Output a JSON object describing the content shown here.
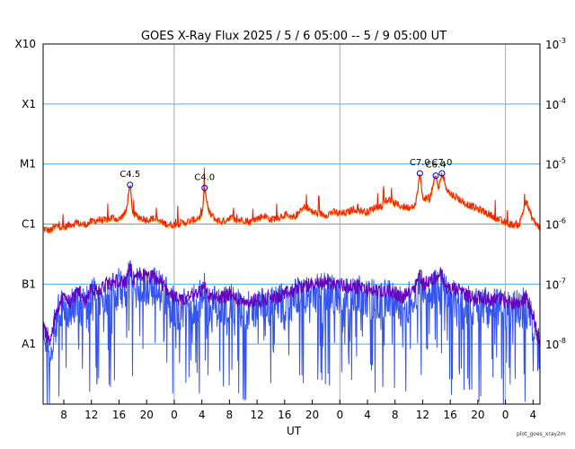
{
  "chart_data": {
    "type": "line",
    "title": "GOES X-Ray Flux   2025 /  5 /  6   05:00 --  5 /  9   05:00   UT",
    "xlabel": "UT",
    "footer": "plot_goes_xray2m",
    "x_range_hours": [
      0,
      72
    ],
    "x_ticks": [
      {
        "t": 3,
        "label": "8"
      },
      {
        "t": 7,
        "label": "12"
      },
      {
        "t": 11,
        "label": "16"
      },
      {
        "t": 15,
        "label": "20"
      },
      {
        "t": 19,
        "label": "0"
      },
      {
        "t": 23,
        "label": "4"
      },
      {
        "t": 27,
        "label": "8"
      },
      {
        "t": 31,
        "label": "12"
      },
      {
        "t": 35,
        "label": "16"
      },
      {
        "t": 39,
        "label": "20"
      },
      {
        "t": 43,
        "label": "0"
      },
      {
        "t": 47,
        "label": "4"
      },
      {
        "t": 51,
        "label": "8"
      },
      {
        "t": 55,
        "label": "12"
      },
      {
        "t": 59,
        "label": "16"
      },
      {
        "t": 63,
        "label": "20"
      },
      {
        "t": 67,
        "label": "0"
      },
      {
        "t": 71,
        "label": "4"
      }
    ],
    "day_boundaries_hours": [
      19,
      43,
      67
    ],
    "y_scale": "log",
    "ylim": [
      1e-09,
      0.001
    ],
    "y_left_labels": [
      {
        "v": 0.001,
        "label": "X10"
      },
      {
        "v": 0.0001,
        "label": "X1"
      },
      {
        "v": 1e-05,
        "label": "M1"
      },
      {
        "v": 1e-06,
        "label": "C1"
      },
      {
        "v": 1e-07,
        "label": "B1"
      },
      {
        "v": 1e-08,
        "label": "A1"
      }
    ],
    "y_right_labels": [
      {
        "v": 0.001,
        "mant": "10",
        "exp": "-3"
      },
      {
        "v": 0.0001,
        "mant": "10",
        "exp": "-4"
      },
      {
        "v": 1e-05,
        "mant": "10",
        "exp": "-5"
      },
      {
        "v": 1e-06,
        "mant": "10",
        "exp": "-6"
      },
      {
        "v": 1e-07,
        "mant": "10",
        "exp": "-7"
      },
      {
        "v": 1e-08,
        "mant": "10",
        "exp": "-8"
      }
    ],
    "class_gridlines": [
      0.0001,
      1e-05,
      1e-06,
      1e-07,
      1e-08
    ],
    "colors": {
      "long_channel": "#ee2200",
      "long_channel_2": "#ff8800",
      "short_channel": "#6600bb",
      "short_channel_2": "#3355ee",
      "grid": "#55aadd",
      "day_line": "#aaaaaa",
      "flare_marker": "#0000cc"
    },
    "flares": [
      {
        "t": 12.6,
        "flux": 4.5e-06,
        "label": "C4.5"
      },
      {
        "t": 23.4,
        "flux": 4e-06,
        "label": "C4.0"
      },
      {
        "t": 54.6,
        "flux": 7e-06,
        "label": "C7.0"
      },
      {
        "t": 56.9,
        "flux": 6.4e-06,
        "label": "C6.4"
      },
      {
        "t": 57.8,
        "flux": 7e-06,
        "label": "C7.0"
      }
    ],
    "series": [
      {
        "channel": "long",
        "points": [
          [
            0,
            8.5e-07
          ],
          [
            1,
            7.8e-07
          ],
          [
            2,
            9.5e-07
          ],
          [
            3,
            8.8e-07
          ],
          [
            4,
            1e-06
          ],
          [
            5,
            1.05e-06
          ],
          [
            6,
            9.8e-07
          ],
          [
            7,
            1.1e-06
          ],
          [
            8,
            1.2e-06
          ],
          [
            9,
            1.15e-06
          ],
          [
            10,
            1.3e-06
          ],
          [
            11,
            1.2e-06
          ],
          [
            12,
            1.6e-06
          ],
          [
            12.6,
            4.5e-06
          ],
          [
            13,
            1.5e-06
          ],
          [
            14,
            1.3e-06
          ],
          [
            15,
            1.2e-06
          ],
          [
            16,
            1.25e-06
          ],
          [
            17,
            1.1e-06
          ],
          [
            18,
            1e-06
          ],
          [
            19,
            9.8e-07
          ],
          [
            20,
            1.05e-06
          ],
          [
            21,
            1.1e-06
          ],
          [
            22,
            1.2e-06
          ],
          [
            23,
            1.4e-06
          ],
          [
            23.4,
            4e-06
          ],
          [
            24,
            1.6e-06
          ],
          [
            25,
            1.2e-06
          ],
          [
            26,
            1.1e-06
          ],
          [
            27,
            1.3e-06
          ],
          [
            28,
            1.15e-06
          ],
          [
            29,
            1.2e-06
          ],
          [
            30,
            1.1e-06
          ],
          [
            31,
            1.25e-06
          ],
          [
            32,
            1.4e-06
          ],
          [
            33,
            1.2e-06
          ],
          [
            34,
            1.3e-06
          ],
          [
            35,
            1.45e-06
          ],
          [
            36,
            1.25e-06
          ],
          [
            37,
            1.5e-06
          ],
          [
            38,
            2e-06
          ],
          [
            39,
            1.6e-06
          ],
          [
            40,
            1.5e-06
          ],
          [
            41,
            1.45e-06
          ],
          [
            42,
            1.6e-06
          ],
          [
            43,
            1.5e-06
          ],
          [
            44,
            1.55e-06
          ],
          [
            45,
            1.8e-06
          ],
          [
            46,
            1.7e-06
          ],
          [
            47,
            1.6e-06
          ],
          [
            48,
            1.9e-06
          ],
          [
            49,
            2e-06
          ],
          [
            50,
            2.6e-06
          ],
          [
            51,
            2.2e-06
          ],
          [
            52,
            2e-06
          ],
          [
            53,
            1.9e-06
          ],
          [
            54,
            2.2e-06
          ],
          [
            54.6,
            7e-06
          ],
          [
            55,
            2.8e-06
          ],
          [
            56,
            2.6e-06
          ],
          [
            56.9,
            6.4e-06
          ],
          [
            57.3,
            4e-06
          ],
          [
            57.8,
            7e-06
          ],
          [
            58.5,
            4e-06
          ],
          [
            59,
            3.2e-06
          ],
          [
            60,
            2.8e-06
          ],
          [
            61,
            2.3e-06
          ],
          [
            62,
            2e-06
          ],
          [
            63,
            1.8e-06
          ],
          [
            64,
            1.6e-06
          ],
          [
            65,
            1.4e-06
          ],
          [
            66,
            1.2e-06
          ],
          [
            67,
            1.05e-06
          ],
          [
            68,
            9.8e-07
          ],
          [
            69,
            1e-06
          ],
          [
            70,
            2.5e-06
          ],
          [
            70.5,
            1.6e-06
          ],
          [
            71,
            1.2e-06
          ],
          [
            72,
            8.5e-07
          ]
        ]
      },
      {
        "channel": "short",
        "points": [
          [
            0,
            2e-08
          ],
          [
            1,
            1e-08
          ],
          [
            2,
            4e-08
          ],
          [
            3,
            6e-08
          ],
          [
            4,
            5e-08
          ],
          [
            5,
            8e-08
          ],
          [
            6,
            5e-08
          ],
          [
            7,
            9e-08
          ],
          [
            8,
            7e-08
          ],
          [
            9,
            1e-07
          ],
          [
            10,
            1e-07
          ],
          [
            11,
            1.2e-07
          ],
          [
            12,
            1e-07
          ],
          [
            12.6,
            2e-07
          ],
          [
            13,
            1e-07
          ],
          [
            14,
            1.5e-07
          ],
          [
            15,
            1.3e-07
          ],
          [
            16,
            1.3e-07
          ],
          [
            17,
            1.1e-07
          ],
          [
            18,
            8e-08
          ],
          [
            19,
            6e-08
          ],
          [
            20,
            5e-08
          ],
          [
            21,
            6e-08
          ],
          [
            22,
            7e-08
          ],
          [
            23,
            8e-08
          ],
          [
            23.4,
            1e-07
          ],
          [
            24,
            6e-08
          ],
          [
            25,
            6e-08
          ],
          [
            26,
            6e-08
          ],
          [
            27,
            7e-08
          ],
          [
            28,
            5.5e-08
          ],
          [
            29,
            5.5e-08
          ],
          [
            30,
            5e-08
          ],
          [
            31,
            5.5e-08
          ],
          [
            32,
            5.5e-08
          ],
          [
            33,
            6e-08
          ],
          [
            34,
            6e-08
          ],
          [
            35,
            7e-08
          ],
          [
            36,
            7e-08
          ],
          [
            37,
            9e-08
          ],
          [
            38,
            9e-08
          ],
          [
            39,
            1e-07
          ],
          [
            40,
            1e-07
          ],
          [
            41,
            1.1e-07
          ],
          [
            42,
            1e-07
          ],
          [
            43,
            1e-07
          ],
          [
            44,
            9e-08
          ],
          [
            45,
            9e-08
          ],
          [
            46,
            9e-08
          ],
          [
            47,
            8e-08
          ],
          [
            48,
            8e-08
          ],
          [
            49,
            7e-08
          ],
          [
            50,
            8e-08
          ],
          [
            51,
            7e-08
          ],
          [
            52,
            6e-08
          ],
          [
            53,
            7e-08
          ],
          [
            54,
            1e-07
          ],
          [
            54.6,
            1.5e-07
          ],
          [
            55,
            1e-07
          ],
          [
            56,
            1.1e-07
          ],
          [
            56.9,
            1.3e-07
          ],
          [
            57.8,
            1.5e-07
          ],
          [
            58,
            1e-07
          ],
          [
            59,
            8e-08
          ],
          [
            60,
            8e-08
          ],
          [
            61,
            7e-08
          ],
          [
            62,
            6e-08
          ],
          [
            63,
            6e-08
          ],
          [
            64,
            6e-08
          ],
          [
            65,
            5.5e-08
          ],
          [
            66,
            6e-08
          ],
          [
            67,
            5e-08
          ],
          [
            68,
            5e-08
          ],
          [
            69,
            5e-08
          ],
          [
            70,
            6e-08
          ],
          [
            71,
            3e-08
          ],
          [
            72,
            1e-08
          ]
        ]
      }
    ]
  }
}
